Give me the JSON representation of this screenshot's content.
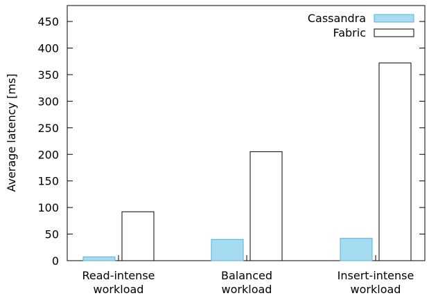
{
  "chart_data": {
    "type": "bar",
    "categories": [
      [
        "Read-intense",
        "workload"
      ],
      [
        "Balanced",
        "workload"
      ],
      [
        "Insert-intense",
        "workload"
      ]
    ],
    "series": [
      {
        "name": "Cassandra",
        "values": [
          7,
          40,
          42
        ],
        "color": "#a6dcf2",
        "stroke": "#5aaedb"
      },
      {
        "name": "Fabric",
        "values": [
          92,
          205,
          372
        ],
        "color": "#ffffff",
        "stroke": "#000000"
      }
    ],
    "title": "",
    "xlabel": "",
    "ylabel": "Average latency [ms]",
    "ylim": [
      0,
      480
    ],
    "yticks": [
      0,
      50,
      100,
      150,
      200,
      250,
      300,
      350,
      400,
      450
    ],
    "grid": false,
    "legend_position": "top-right"
  }
}
